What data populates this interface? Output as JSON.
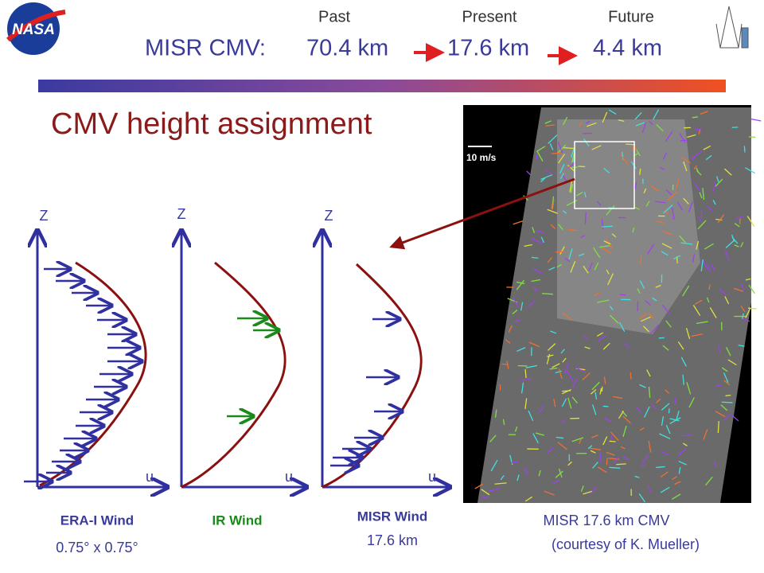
{
  "logo": "NASA",
  "header": {
    "past": "Past",
    "present": "Present",
    "future": "Future",
    "label": "MISR CMV:",
    "past_value": "70.4 km",
    "present_value": "17.6 km",
    "future_value": "4.4 km"
  },
  "title": "CMV height assignment",
  "panels": [
    {
      "z_label": "Z",
      "u_label": "u",
      "name": "ERA-I Wind",
      "note": "0.75° x 0.75°"
    },
    {
      "z_label": "Z",
      "u_label": "u",
      "name": "IR Wind"
    },
    {
      "z_label": "Z",
      "u_label": "u",
      "name": "MISR Wind",
      "note": "17.6 km"
    }
  ],
  "image": {
    "scale": "10 m/s",
    "caption": [
      "MISR 17.6 km CMV",
      "(courtesy of K. Mueller)"
    ]
  }
}
